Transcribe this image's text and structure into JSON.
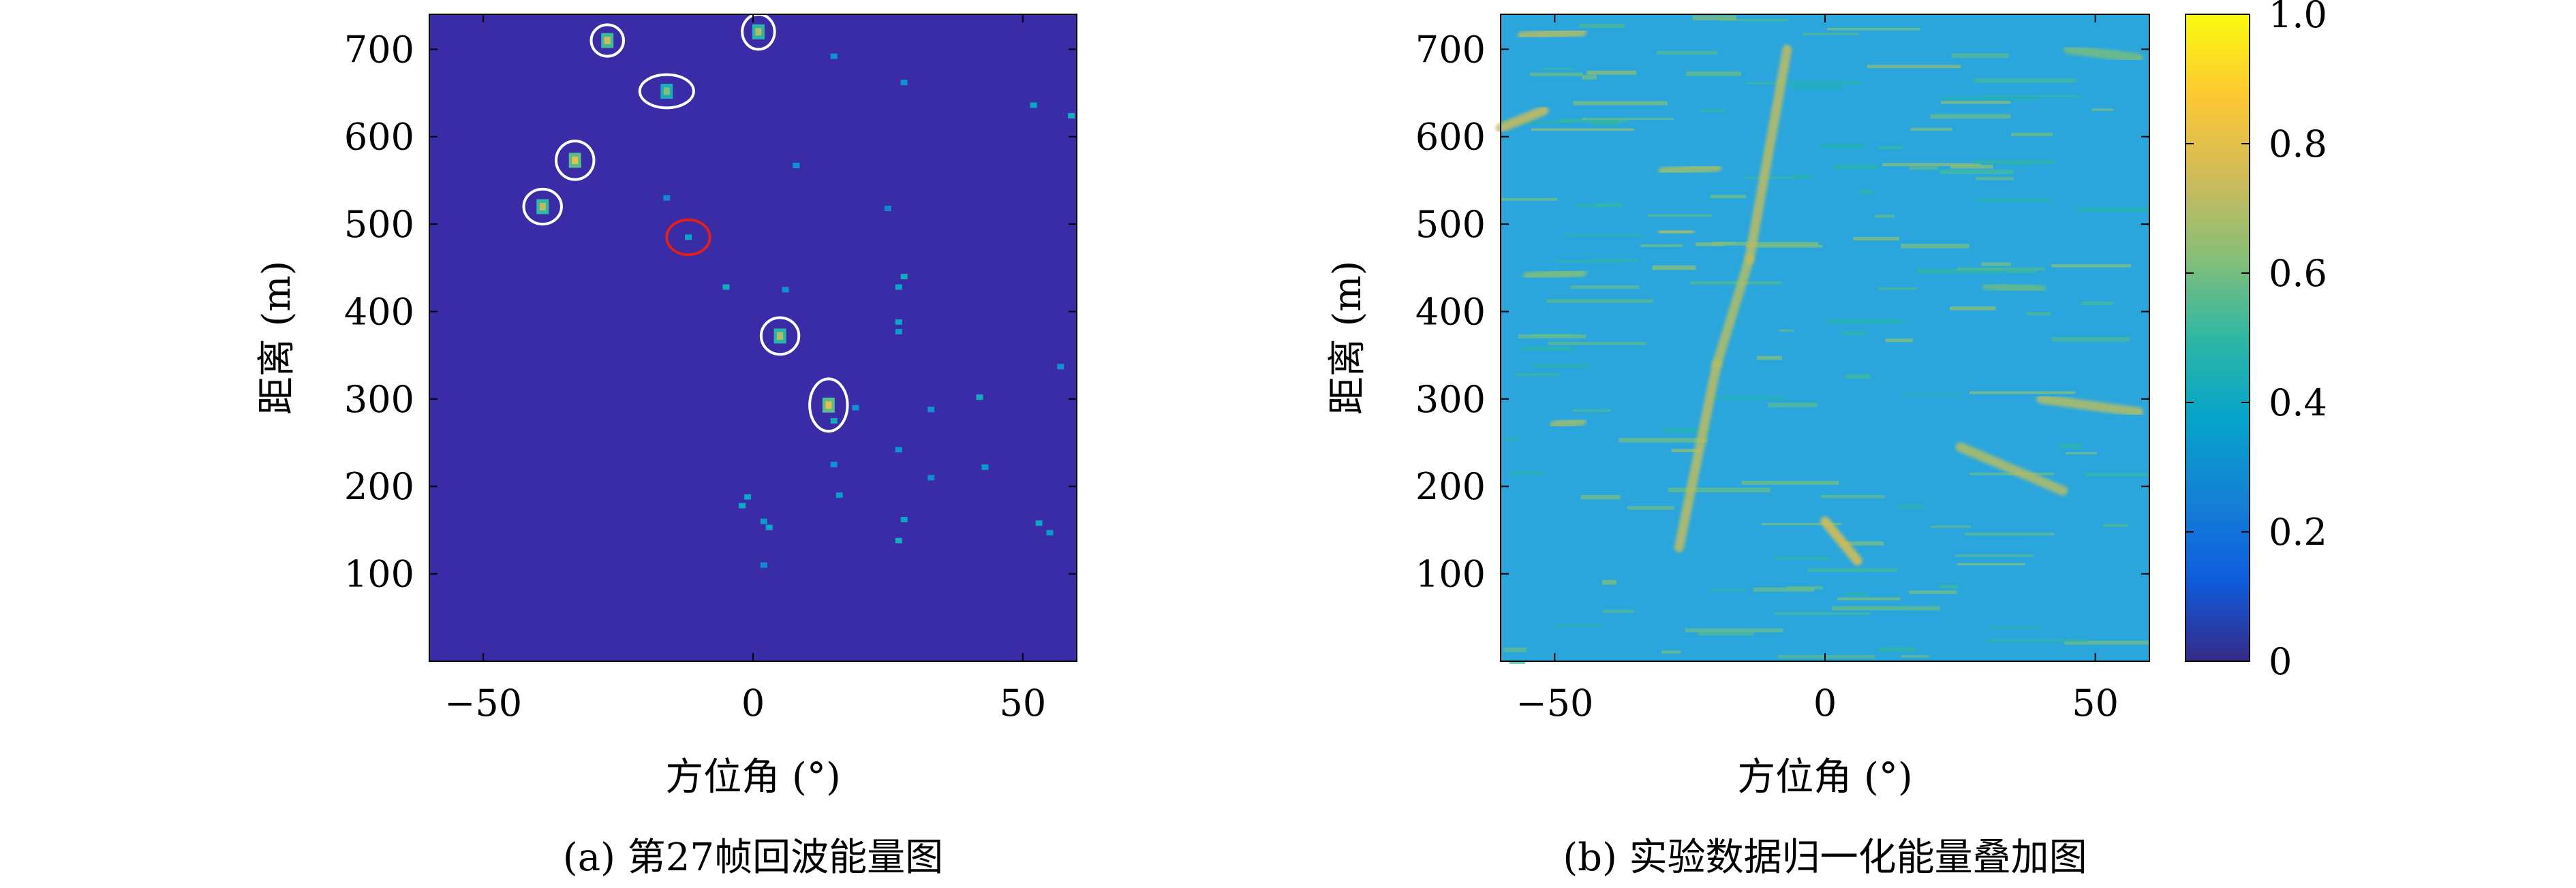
{
  "colors": {
    "background_a": "#3a2ba6",
    "background_b": "#2aa6dd",
    "circle_white": "#ffffff",
    "circle_red": "#e0201b",
    "colormap": [
      "#352a87",
      "#0f5cdd",
      "#1481d6",
      "#06a4ca",
      "#2eb7a4",
      "#87bf77",
      "#d1bb59",
      "#fec832",
      "#f9fb0e"
    ]
  },
  "chart_data": [
    {
      "type": "heatmap",
      "caption": "(a) 第27帧回波能量图",
      "xlabel": "方位角 (°)",
      "ylabel": "距离 (m)",
      "xlim": [
        -60,
        60
      ],
      "ylim": [
        0,
        740
      ],
      "xticks": [
        -50,
        0,
        50
      ],
      "xtick_labels": [
        "−50",
        "0",
        "50"
      ],
      "yticks": [
        100,
        200,
        300,
        400,
        500,
        600,
        700
      ],
      "ytick_labels": [
        "100",
        "200",
        "300",
        "400",
        "500",
        "600",
        "700"
      ],
      "background_value": 0,
      "targets_circled": [
        {
          "x": -27,
          "y": 710,
          "rx": 3.0,
          "ry": 18
        },
        {
          "x": 1,
          "y": 720,
          "rx": 3.0,
          "ry": 20
        },
        {
          "x": -16,
          "y": 652,
          "rx": 5.0,
          "ry": 19
        },
        {
          "x": -33,
          "y": 573,
          "rx": 3.5,
          "ry": 22
        },
        {
          "x": -39,
          "y": 520,
          "rx": 3.5,
          "ry": 20
        },
        {
          "x": 5,
          "y": 372,
          "rx": 3.5,
          "ry": 21
        },
        {
          "x": 14,
          "y": 293,
          "rx": 3.5,
          "ry": 30
        }
      ],
      "target_highlighted": {
        "x": -12,
        "y": 485,
        "rx": 4.0,
        "ry": 20
      },
      "speckles": [
        {
          "x": -27,
          "y": 710,
          "v": 0.75
        },
        {
          "x": 1,
          "y": 720,
          "v": 0.7
        },
        {
          "x": -16,
          "y": 652,
          "v": 0.62
        },
        {
          "x": -33,
          "y": 573,
          "v": 0.8
        },
        {
          "x": -39,
          "y": 520,
          "v": 0.72
        },
        {
          "x": -12,
          "y": 485,
          "v": 0.55
        },
        {
          "x": 5,
          "y": 372,
          "v": 0.7
        },
        {
          "x": 14,
          "y": 293,
          "v": 0.8
        },
        {
          "x": 15,
          "y": 275,
          "v": 0.6
        },
        {
          "x": 15,
          "y": 692,
          "v": 0.45
        },
        {
          "x": 28,
          "y": 662,
          "v": 0.45
        },
        {
          "x": 52,
          "y": 636,
          "v": 0.55
        },
        {
          "x": 59,
          "y": 624,
          "v": 0.6
        },
        {
          "x": 8,
          "y": 567,
          "v": 0.45
        },
        {
          "x": -16,
          "y": 530,
          "v": 0.4
        },
        {
          "x": 25,
          "y": 518,
          "v": 0.4
        },
        {
          "x": 28,
          "y": 440,
          "v": 0.6
        },
        {
          "x": 27,
          "y": 428,
          "v": 0.55
        },
        {
          "x": 6,
          "y": 425,
          "v": 0.45
        },
        {
          "x": -5,
          "y": 428,
          "v": 0.6
        },
        {
          "x": 27,
          "y": 388,
          "v": 0.55
        },
        {
          "x": 27,
          "y": 377,
          "v": 0.5
        },
        {
          "x": 57,
          "y": 337,
          "v": 0.45
        },
        {
          "x": 42,
          "y": 302,
          "v": 0.6
        },
        {
          "x": 33,
          "y": 288,
          "v": 0.45
        },
        {
          "x": 19,
          "y": 290,
          "v": 0.45
        },
        {
          "x": 27,
          "y": 242,
          "v": 0.45
        },
        {
          "x": 43,
          "y": 222,
          "v": 0.5
        },
        {
          "x": 15,
          "y": 225,
          "v": 0.45
        },
        {
          "x": 16,
          "y": 190,
          "v": 0.5
        },
        {
          "x": 33,
          "y": 210,
          "v": 0.4
        },
        {
          "x": -1,
          "y": 188,
          "v": 0.55
        },
        {
          "x": -2,
          "y": 178,
          "v": 0.55
        },
        {
          "x": 2,
          "y": 160,
          "v": 0.5
        },
        {
          "x": 3,
          "y": 153,
          "v": 0.55
        },
        {
          "x": 28,
          "y": 162,
          "v": 0.55
        },
        {
          "x": 27,
          "y": 138,
          "v": 0.6
        },
        {
          "x": 53,
          "y": 158,
          "v": 0.55
        },
        {
          "x": 55,
          "y": 147,
          "v": 0.5
        },
        {
          "x": 2,
          "y": 110,
          "v": 0.4
        }
      ]
    },
    {
      "type": "heatmap",
      "caption": "(b) 实验数据归一化能量叠加图",
      "xlabel": "方位角 (°)",
      "ylabel": "距离 (m)",
      "xlim": [
        -60,
        60
      ],
      "ylim": [
        0,
        740
      ],
      "xticks": [
        -50,
        0,
        50
      ],
      "xtick_labels": [
        "−50",
        "0",
        "50"
      ],
      "yticks": [
        100,
        200,
        300,
        400,
        500,
        600,
        700
      ],
      "ytick_labels": [
        "100",
        "200",
        "300",
        "400",
        "500",
        "600",
        "700"
      ],
      "background_value": 0.42,
      "colorbar": {
        "range": [
          0,
          1
        ],
        "ticks": [
          0,
          0.2,
          0.4,
          0.6,
          0.8,
          1.0
        ],
        "tick_labels": [
          "0",
          "0.2",
          "0.4",
          "0.6",
          "0.8",
          "1.0"
        ]
      },
      "streaks": [
        {
          "x1": -27,
          "y1": 130,
          "x2": -20,
          "y2": 340,
          "v": 0.72
        },
        {
          "x1": -20,
          "y1": 340,
          "x2": -14,
          "y2": 460,
          "v": 0.7
        },
        {
          "x1": -14,
          "y1": 460,
          "x2": -7,
          "y2": 700,
          "v": 0.72
        },
        {
          "x1": 0,
          "y1": 160,
          "x2": 6,
          "y2": 115,
          "v": 0.78
        },
        {
          "x1": 25,
          "y1": 245,
          "x2": 44,
          "y2": 195,
          "v": 0.7
        },
        {
          "x1": 40,
          "y1": 300,
          "x2": 58,
          "y2": 285,
          "v": 0.7
        },
        {
          "x1": -56,
          "y1": 715,
          "x2": -45,
          "y2": 720,
          "v": 0.7
        },
        {
          "x1": -60,
          "y1": 610,
          "x2": -52,
          "y2": 630,
          "v": 0.74
        },
        {
          "x1": -30,
          "y1": 560,
          "x2": -20,
          "y2": 565,
          "v": 0.66
        },
        {
          "x1": -30,
          "y1": 490,
          "x2": -25,
          "y2": 492,
          "v": 0.7
        },
        {
          "x1": -55,
          "y1": 440,
          "x2": -45,
          "y2": 445,
          "v": 0.62
        },
        {
          "x1": -50,
          "y1": 270,
          "x2": -45,
          "y2": 275,
          "v": 0.66
        },
        {
          "x1": 45,
          "y1": 700,
          "x2": 58,
          "y2": 690,
          "v": 0.6
        },
        {
          "x1": -48,
          "y1": 120,
          "x2": -40,
          "y2": 120,
          "v": 0.62
        },
        {
          "x1": 30,
          "y1": 430,
          "x2": 40,
          "y2": 425,
          "v": 0.58
        }
      ]
    }
  ]
}
